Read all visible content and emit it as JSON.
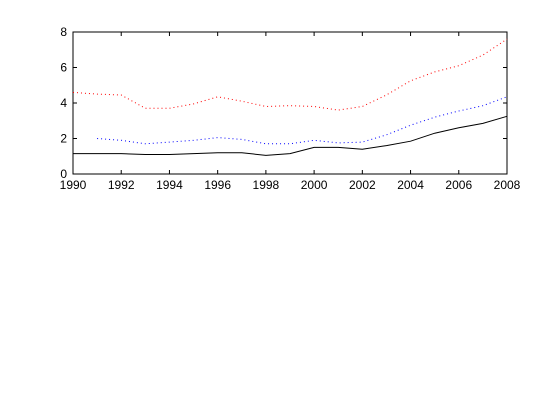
{
  "chart_data": {
    "type": "line",
    "title": "",
    "xlabel": "",
    "ylabel": "",
    "xlim": [
      1990,
      2008
    ],
    "ylim": [
      0,
      8
    ],
    "grid": false,
    "legend": "none",
    "x_ticks": [
      1990,
      1992,
      1994,
      1996,
      1998,
      2000,
      2002,
      2004,
      2006,
      2008
    ],
    "x_tick_labels": [
      "1990",
      "1992",
      "1994",
      "1996",
      "1998",
      "2000",
      "2002",
      "2004",
      "2006",
      "2008"
    ],
    "y_ticks": [
      0,
      2,
      4,
      6,
      8
    ],
    "y_tick_labels": [
      "0",
      "2",
      "4",
      "6",
      "8"
    ],
    "series": [
      {
        "color": "#ff0000",
        "style": "dotted",
        "x": [
          1990,
          1991,
          1992,
          1993,
          1994,
          1995,
          1996,
          1997,
          1998,
          1999,
          2000,
          2001,
          2002,
          2003,
          2004,
          2005,
          2006,
          2007,
          2008
        ],
        "y": [
          4.6,
          4.5,
          4.45,
          3.7,
          3.7,
          3.95,
          4.35,
          4.1,
          3.8,
          3.85,
          3.8,
          3.6,
          3.8,
          4.45,
          5.25,
          5.75,
          6.1,
          6.7,
          7.6
        ]
      },
      {
        "color": "#0000ff",
        "style": "dotted",
        "x": [
          1991,
          1992,
          1993,
          1994,
          1995,
          1996,
          1997,
          1998,
          1999,
          2000,
          2001,
          2002,
          2003,
          2004,
          2005,
          2006,
          2007,
          2008
        ],
        "y": [
          2.0,
          1.9,
          1.7,
          1.8,
          1.9,
          2.05,
          1.95,
          1.7,
          1.7,
          1.9,
          1.75,
          1.8,
          2.2,
          2.75,
          3.2,
          3.55,
          3.85,
          4.35
        ]
      },
      {
        "color": "#000000",
        "style": "solid",
        "x": [
          1990,
          1991,
          1992,
          1993,
          1994,
          1995,
          1996,
          1997,
          1998,
          1999,
          2000,
          2001,
          2002,
          2003,
          2004,
          2005,
          2006,
          2007,
          2008
        ],
        "y": [
          1.15,
          1.15,
          1.15,
          1.1,
          1.1,
          1.15,
          1.2,
          1.2,
          1.05,
          1.15,
          1.5,
          1.5,
          1.4,
          1.6,
          1.85,
          2.3,
          2.6,
          2.85,
          3.25
        ]
      }
    ]
  }
}
